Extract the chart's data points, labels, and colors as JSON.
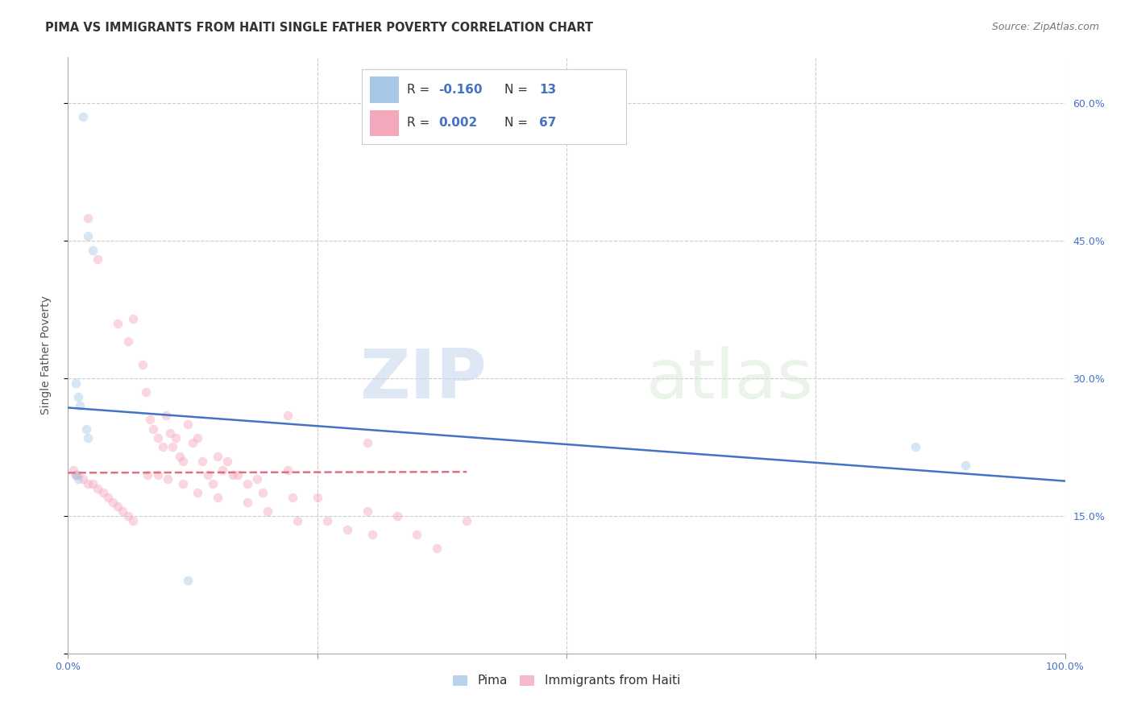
{
  "title": "PIMA VS IMMIGRANTS FROM HAITI SINGLE FATHER POVERTY CORRELATION CHART",
  "source": "Source: ZipAtlas.com",
  "ylabel": "Single Father Poverty",
  "watermark_zip": "ZIP",
  "watermark_atlas": "atlas",
  "xlim": [
    0,
    1.0
  ],
  "ylim": [
    0,
    0.65
  ],
  "xticks": [
    0.0,
    0.25,
    0.5,
    0.75,
    1.0
  ],
  "yticks_right_labels": [
    "15.0%",
    "30.0%",
    "45.0%",
    "60.0%"
  ],
  "yticks_right_vals": [
    0.15,
    0.3,
    0.45,
    0.6
  ],
  "pima_color": "#a8c8e8",
  "haiti_color": "#f4a8bc",
  "pima_line_color": "#4472c4",
  "haiti_line_color": "#e07080",
  "pima_label": "Pima",
  "haiti_label": "Immigrants from Haiti",
  "pima_R": "-0.160",
  "pima_N": "13",
  "haiti_R": "0.002",
  "haiti_N": "67",
  "legend_text_color": "#4472c4",
  "pima_scatter_x": [
    0.015,
    0.02,
    0.025,
    0.008,
    0.01,
    0.012,
    0.018,
    0.02,
    0.008,
    0.01,
    0.85,
    0.9,
    0.12
  ],
  "pima_scatter_y": [
    0.585,
    0.455,
    0.44,
    0.295,
    0.28,
    0.27,
    0.245,
    0.235,
    0.195,
    0.19,
    0.225,
    0.205,
    0.08
  ],
  "haiti_scatter_x": [
    0.008,
    0.02,
    0.03,
    0.05,
    0.06,
    0.065,
    0.075,
    0.078,
    0.082,
    0.085,
    0.09,
    0.095,
    0.098,
    0.102,
    0.105,
    0.108,
    0.112,
    0.115,
    0.12,
    0.125,
    0.13,
    0.135,
    0.14,
    0.145,
    0.15,
    0.155,
    0.16,
    0.165,
    0.17,
    0.18,
    0.19,
    0.195,
    0.2,
    0.22,
    0.225,
    0.23,
    0.25,
    0.26,
    0.28,
    0.3,
    0.305,
    0.33,
    0.35,
    0.37,
    0.4,
    0.22,
    0.005,
    0.01,
    0.015,
    0.02,
    0.025,
    0.03,
    0.035,
    0.04,
    0.045,
    0.05,
    0.055,
    0.06,
    0.065,
    0.08,
    0.09,
    0.1,
    0.115,
    0.13,
    0.15,
    0.18,
    0.3
  ],
  "haiti_scatter_y": [
    0.195,
    0.475,
    0.43,
    0.36,
    0.34,
    0.365,
    0.315,
    0.285,
    0.255,
    0.245,
    0.235,
    0.225,
    0.26,
    0.24,
    0.225,
    0.235,
    0.215,
    0.21,
    0.25,
    0.23,
    0.235,
    0.21,
    0.195,
    0.185,
    0.215,
    0.2,
    0.21,
    0.195,
    0.195,
    0.185,
    0.19,
    0.175,
    0.155,
    0.2,
    0.17,
    0.145,
    0.17,
    0.145,
    0.135,
    0.155,
    0.13,
    0.15,
    0.13,
    0.115,
    0.145,
    0.26,
    0.2,
    0.195,
    0.19,
    0.185,
    0.185,
    0.18,
    0.175,
    0.17,
    0.165,
    0.16,
    0.155,
    0.15,
    0.145,
    0.195,
    0.195,
    0.19,
    0.185,
    0.175,
    0.17,
    0.165,
    0.23
  ],
  "pima_line_x": [
    0.0,
    1.0
  ],
  "pima_line_y": [
    0.268,
    0.188
  ],
  "haiti_line_x": [
    0.0,
    0.4
  ],
  "haiti_line_y": [
    0.197,
    0.198
  ],
  "background_color": "#ffffff",
  "grid_color": "#cccccc",
  "title_fontsize": 10.5,
  "axis_label_fontsize": 10,
  "tick_fontsize": 9,
  "marker_size": 70,
  "marker_alpha": 0.45,
  "line_width": 1.8
}
